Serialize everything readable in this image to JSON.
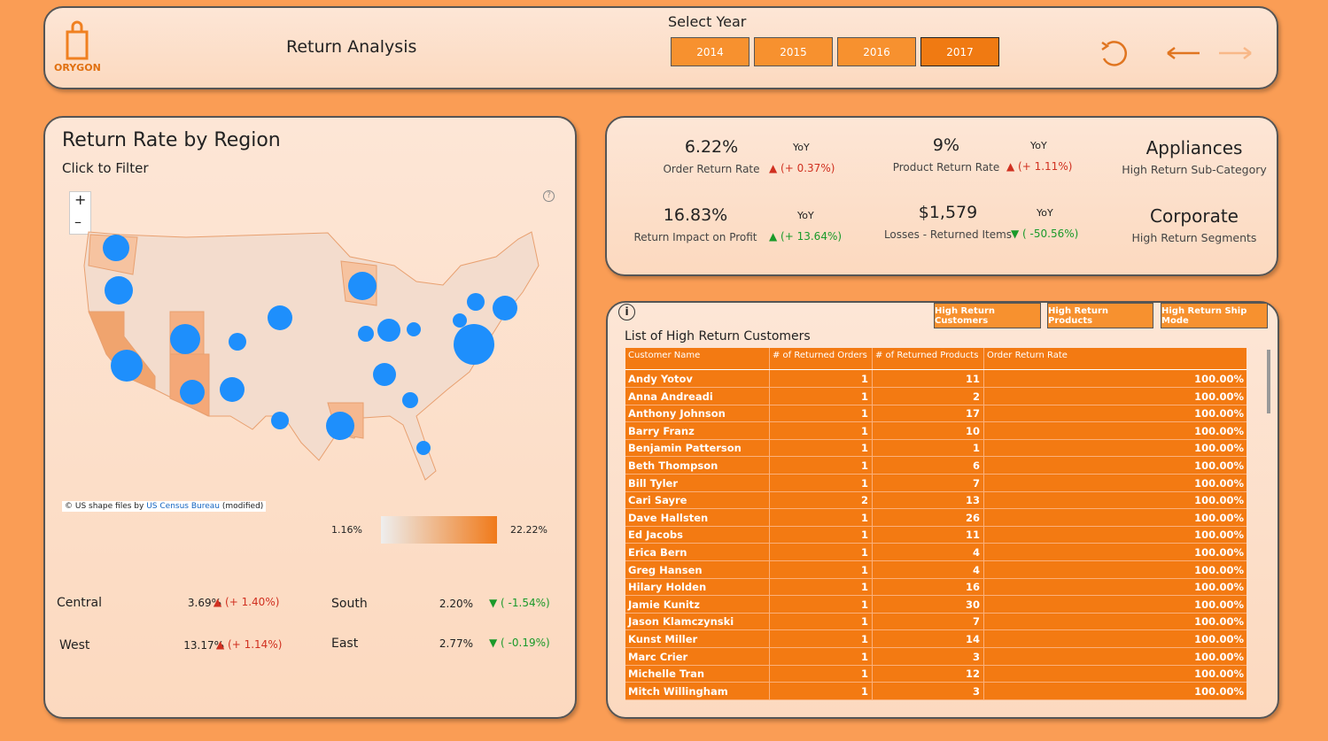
{
  "header": {
    "logo": "ORYGON",
    "title": "Return Analysis",
    "year_label": "Select Year",
    "years": [
      "2014",
      "2015",
      "2016",
      "2017"
    ]
  },
  "kpis": [
    {
      "value": "6.22%",
      "label": "Order Return Rate",
      "yoy": "YoY",
      "change": "▲ (+ 0.37%)",
      "color": "#d03020"
    },
    {
      "value": "9%",
      "label": "Product Return Rate",
      "yoy": "YoY",
      "change": "▲ (+ 1.11%)",
      "color": "#d03020"
    },
    {
      "value": "Appliances",
      "label": "High Return Sub-Category"
    },
    {
      "value": "16.83%",
      "label": "Return Impact on Profit",
      "yoy": "YoY",
      "change": "▲ (+ 13.64%)",
      "color": "#1a9a2a"
    },
    {
      "value": "$1,579",
      "label": "Losses - Returned Items",
      "yoy": "YoY",
      "change": "▼ ( -50.56%)",
      "color": "#1a9a2a"
    },
    {
      "value": "Corporate",
      "label": "High Return Segments"
    }
  ],
  "map": {
    "title": "Return Rate by Region",
    "subtitle": "Click to Filter",
    "zoom_in": "+",
    "zoom_out": "–",
    "help": "?",
    "attribution": "© US shape files by",
    "attribution_link": "US Census Bureau",
    "attribution_note": "(modified)",
    "legend_min": "1.16%",
    "legend_max": "22.22%"
  },
  "regions": [
    {
      "name": "Central",
      "rate": "3.69%",
      "change": "▲ (+ 1.40%)",
      "color": "#d03020"
    },
    {
      "name": "South",
      "rate": "2.20%",
      "change": "▼ ( -1.54%)",
      "color": "#1a9a2a"
    },
    {
      "name": "West",
      "rate": "13.17%",
      "change": "▲ (+ 1.14%)",
      "color": "#d03020"
    },
    {
      "name": "East",
      "rate": "2.77%",
      "change": "▼ ( -0.19%)",
      "color": "#1a9a2a"
    }
  ],
  "table": {
    "info": "i",
    "tabs": [
      "High Return Customers",
      "High Return Products",
      "High Return Ship Mode"
    ],
    "title": "List of High Return Customers",
    "columns": [
      "Customer Name",
      "# of Returned Orders",
      "# of Returned Products",
      "Order Return Rate"
    ],
    "rows": [
      [
        "Andy Yotov",
        "1",
        "11",
        "100.00%"
      ],
      [
        "Anna Andreadi",
        "1",
        "2",
        "100.00%"
      ],
      [
        "Anthony Johnson",
        "1",
        "17",
        "100.00%"
      ],
      [
        "Barry Franz",
        "1",
        "10",
        "100.00%"
      ],
      [
        "Benjamin Patterson",
        "1",
        "1",
        "100.00%"
      ],
      [
        "Beth Thompson",
        "1",
        "6",
        "100.00%"
      ],
      [
        "Bill Tyler",
        "1",
        "7",
        "100.00%"
      ],
      [
        "Cari Sayre",
        "2",
        "13",
        "100.00%"
      ],
      [
        "Dave Hallsten",
        "1",
        "26",
        "100.00%"
      ],
      [
        "Ed Jacobs",
        "1",
        "11",
        "100.00%"
      ],
      [
        "Erica Bern",
        "1",
        "4",
        "100.00%"
      ],
      [
        "Greg Hansen",
        "1",
        "4",
        "100.00%"
      ],
      [
        "Hilary Holden",
        "1",
        "16",
        "100.00%"
      ],
      [
        "Jamie Kunitz",
        "1",
        "30",
        "100.00%"
      ],
      [
        "Jason Klamczynski",
        "1",
        "7",
        "100.00%"
      ],
      [
        "Kunst Miller",
        "1",
        "14",
        "100.00%"
      ],
      [
        "Marc Crier",
        "1",
        "3",
        "100.00%"
      ],
      [
        "Michelle Tran",
        "1",
        "12",
        "100.00%"
      ],
      [
        "Mitch Willingham",
        "1",
        "3",
        "100.00%"
      ]
    ]
  }
}
